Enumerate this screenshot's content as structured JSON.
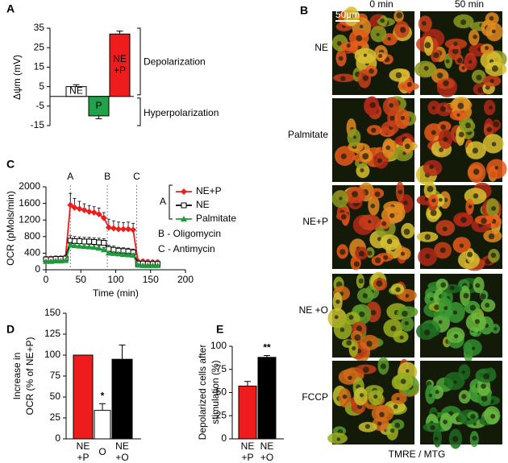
{
  "chart_data": [
    {
      "type": "bar",
      "panel": "A",
      "ylabel": [
        "Δψm (mV)"
      ],
      "categories": [
        "NE",
        "P",
        "NE +P"
      ],
      "values": [
        5,
        -10,
        32
      ],
      "errors": [
        1,
        1.5,
        1.5
      ],
      "colors": [
        "#ffffff",
        "#21a14a",
        "#ee1c1c"
      ],
      "labels_inside": true,
      "ylim": [
        -15,
        35
      ],
      "yticks": [
        -15,
        -5,
        5,
        15,
        25,
        35
      ],
      "annotations": [
        "Depolarization",
        "Hyperpolarization"
      ]
    },
    {
      "type": "line",
      "panel": "C",
      "xlabel": "Time (min)",
      "ylabel": [
        "OCR (pMols/min)"
      ],
      "x": [
        0,
        7,
        14,
        21,
        28,
        35,
        41,
        48,
        55,
        62,
        69,
        76,
        83,
        90,
        97,
        104,
        111,
        118,
        125,
        132,
        139,
        146,
        153,
        160
      ],
      "series": [
        {
          "name": "NE+P",
          "color": "#ee1c1c",
          "marker": "diamond",
          "values": [
            270,
            270,
            280,
            280,
            300,
            1560,
            1500,
            1470,
            1440,
            1400,
            1380,
            1340,
            1250,
            1020,
            1000,
            980,
            980,
            980,
            960,
            200,
            200,
            190,
            180,
            180
          ],
          "errors": [
            50,
            50,
            50,
            50,
            50,
            280,
            220,
            180,
            150,
            150,
            140,
            150,
            130,
            200,
            180,
            170,
            160,
            170,
            160,
            50,
            50,
            50,
            50,
            50
          ]
        },
        {
          "name": "NE",
          "color": "#000000",
          "marker": "square",
          "values": [
            250,
            250,
            260,
            260,
            270,
            700,
            690,
            690,
            680,
            680,
            670,
            660,
            650,
            500,
            480,
            460,
            450,
            440,
            420,
            150,
            150,
            140,
            140,
            140
          ],
          "errors": [
            40,
            40,
            40,
            40,
            40,
            120,
            110,
            100,
            100,
            100,
            100,
            100,
            100,
            90,
            90,
            80,
            80,
            80,
            80,
            40,
            40,
            40,
            40,
            40
          ]
        },
        {
          "name": "Palmitate",
          "color": "#1f9a3a",
          "marker": "triangle",
          "values": [
            200,
            200,
            210,
            210,
            220,
            600,
            580,
            570,
            560,
            550,
            540,
            520,
            480,
            400,
            390,
            380,
            370,
            360,
            350,
            110,
            100,
            100,
            100,
            100
          ],
          "errors": [
            20,
            20,
            20,
            20,
            20,
            60,
            60,
            60,
            60,
            60,
            60,
            60,
            60,
            40,
            40,
            40,
            40,
            40,
            40,
            20,
            20,
            20,
            20,
            20
          ]
        }
      ],
      "events": [
        {
          "label": "A",
          "x": 35
        },
        {
          "label": "B",
          "x": 88
        },
        {
          "label": "C",
          "x": 130
        }
      ],
      "legend_group_label": "A",
      "notes": [
        "B - Oligomycin",
        "C - Antimycin"
      ],
      "xlim": [
        0,
        200
      ],
      "xticks": [
        0,
        50,
        100,
        150,
        200
      ],
      "ylim": [
        0,
        2000
      ],
      "yticks": [
        0,
        400,
        800,
        1200,
        1600,
        2000
      ]
    },
    {
      "type": "bar",
      "panel": "D",
      "ylabel": [
        "Increase in",
        "OCR (% of NE+P)"
      ],
      "categories": [
        "NE +P",
        "O",
        "NE +O"
      ],
      "values": [
        100,
        34,
        95
      ],
      "errors": [
        0,
        8,
        17
      ],
      "colors": [
        "#ee1c1c",
        "#ffffff",
        "#000000"
      ],
      "labels_inside": false,
      "ylim": [
        0,
        150
      ],
      "yticks": [
        0,
        25,
        50,
        75,
        100,
        125,
        150
      ],
      "annotations": [
        {
          "label": "*",
          "category": 1
        }
      ]
    },
    {
      "type": "bar",
      "panel": "E",
      "ylabel": [
        "Depolarized cells after",
        "stimulation (%)"
      ],
      "categories": [
        "NE +P",
        "NE +O"
      ],
      "values": [
        57,
        88
      ],
      "errors": [
        5,
        2
      ],
      "colors": [
        "#ee1c1c",
        "#000000"
      ],
      "labels_inside": false,
      "ylim": [
        0,
        100
      ],
      "yticks": [
        0,
        25,
        50,
        75,
        100
      ],
      "annotations": [
        {
          "label": "**",
          "category": 1
        }
      ]
    }
  ],
  "panel_b": {
    "panel": "B",
    "columns": [
      "0 min",
      "50 min"
    ],
    "rows": [
      "NE",
      "Palmitate",
      "NE+P",
      "NE +O",
      "FCCP"
    ],
    "scale_bar": "50μm",
    "caption": "TMRE / MTG"
  }
}
